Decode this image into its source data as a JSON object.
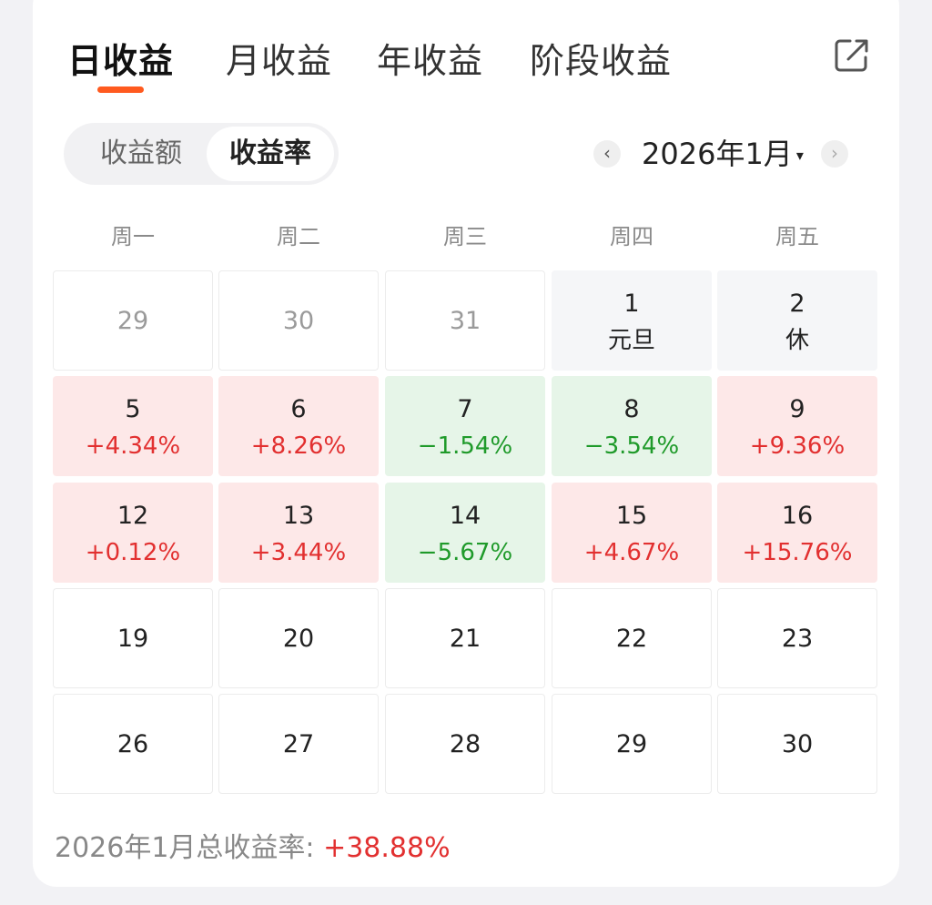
{
  "tabs": [
    {
      "label": "日收益",
      "active": true
    },
    {
      "label": "月收益",
      "active": false
    },
    {
      "label": "年收益",
      "active": false
    },
    {
      "label": "阶段收益",
      "active": false
    }
  ],
  "toggle": {
    "options": [
      "收益额",
      "收益率"
    ],
    "selected": "收益率"
  },
  "month_nav": {
    "prev": "‹",
    "label": "2026年1月",
    "caret": "▾",
    "next": "›"
  },
  "weekdays": [
    "周一",
    "周二",
    "周三",
    "周四",
    "周五"
  ],
  "calendar": [
    [
      {
        "day": "29",
        "sub": "",
        "state": "prev"
      },
      {
        "day": "30",
        "sub": "",
        "state": "prev"
      },
      {
        "day": "31",
        "sub": "",
        "state": "prev"
      },
      {
        "day": "1",
        "sub": "元旦",
        "state": "gray"
      },
      {
        "day": "2",
        "sub": "休",
        "state": "gray"
      }
    ],
    [
      {
        "day": "5",
        "sub": "+4.34%",
        "state": "up"
      },
      {
        "day": "6",
        "sub": "+8.26%",
        "state": "up"
      },
      {
        "day": "7",
        "sub": "−1.54%",
        "state": "down"
      },
      {
        "day": "8",
        "sub": "−3.54%",
        "state": "down"
      },
      {
        "day": "9",
        "sub": "+9.36%",
        "state": "up"
      }
    ],
    [
      {
        "day": "12",
        "sub": "+0.12%",
        "state": "up"
      },
      {
        "day": "13",
        "sub": "+3.44%",
        "state": "up"
      },
      {
        "day": "14",
        "sub": "−5.67%",
        "state": "down"
      },
      {
        "day": "15",
        "sub": "+4.67%",
        "state": "up"
      },
      {
        "day": "16",
        "sub": "+15.76%",
        "state": "up"
      }
    ],
    [
      {
        "day": "19",
        "sub": "",
        "state": "normal"
      },
      {
        "day": "20",
        "sub": "",
        "state": "normal"
      },
      {
        "day": "21",
        "sub": "",
        "state": "normal"
      },
      {
        "day": "22",
        "sub": "",
        "state": "normal"
      },
      {
        "day": "23",
        "sub": "",
        "state": "normal"
      }
    ],
    [
      {
        "day": "26",
        "sub": "",
        "state": "normal"
      },
      {
        "day": "27",
        "sub": "",
        "state": "normal"
      },
      {
        "day": "28",
        "sub": "",
        "state": "normal"
      },
      {
        "day": "29",
        "sub": "",
        "state": "normal"
      },
      {
        "day": "30",
        "sub": "",
        "state": "normal"
      }
    ]
  ],
  "summary": {
    "label": "2026年1月总收益率: ",
    "value": "+38.88%"
  },
  "colors": {
    "accent": "#ff5a1f",
    "up": "#e23030",
    "down": "#1f9a2a",
    "up_bg": "#fde8e8",
    "down_bg": "#e6f5e8"
  },
  "icons": {
    "share": "share-icon"
  }
}
